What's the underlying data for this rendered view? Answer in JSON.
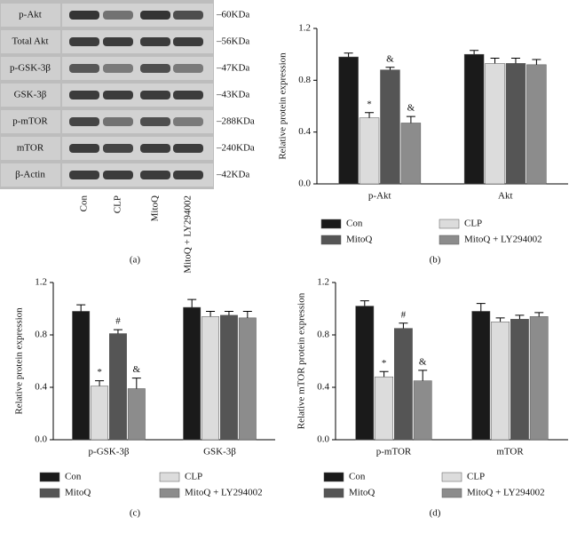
{
  "blot": {
    "rows": [
      "p-Akt",
      "Total Akt",
      "p-GSK-3β",
      "GSK-3β",
      "p-mTOR",
      "mTOR",
      "β-Actin"
    ],
    "sizes": [
      "–60KDa",
      "–56KDa",
      "–47KDa",
      "–43KDa",
      "–288KDa",
      "–240KDa",
      "–42KDa"
    ],
    "lanes": [
      "Con",
      "CLP",
      "MitoQ",
      "MitoQ + LY294002"
    ],
    "caption": "(a)"
  },
  "chart_data": [
    {
      "type": "bar",
      "caption": "(b)",
      "ylabel": "Relative protein expression",
      "categories": [
        "p-Akt",
        "Akt"
      ],
      "ylim": [
        0,
        1.2
      ],
      "yticks": [
        {
          "value": 0,
          "label": "0.0"
        },
        0.4,
        0.8,
        1.2
      ],
      "series": [
        {
          "name": "Con",
          "color": "#1a1a1a",
          "values": [
            0.98,
            1.0
          ],
          "errors": [
            0.03,
            0.03
          ],
          "annotations": [
            null,
            null
          ]
        },
        {
          "name": "CLP",
          "color": "#dcdcdc",
          "values": [
            0.51,
            0.93
          ],
          "errors": [
            0.04,
            0.04
          ],
          "annotations": [
            "*",
            null
          ]
        },
        {
          "name": "MitoQ",
          "color": "#555555",
          "values": [
            0.88,
            0.93
          ],
          "errors": [
            0.02,
            0.04
          ],
          "annotations": [
            "&",
            null
          ]
        },
        {
          "name": "MitoQ + LY294002",
          "color": "#8c8c8c",
          "values": [
            0.47,
            0.92
          ],
          "errors": [
            0.05,
            0.04
          ],
          "annotations": [
            "&",
            null
          ]
        }
      ]
    },
    {
      "type": "bar",
      "caption": "(c)",
      "ylabel": "Relative protein expression",
      "categories": [
        "p-GSK-3β",
        "GSK-3β"
      ],
      "ylim": [
        0,
        1.2
      ],
      "yticks": [
        {
          "value": 0,
          "label": "0.0"
        },
        0.4,
        0.8,
        1.2
      ],
      "series": [
        {
          "name": "Con",
          "color": "#1a1a1a",
          "values": [
            0.98,
            1.01
          ],
          "errors": [
            0.05,
            0.06
          ],
          "annotations": [
            null,
            null
          ]
        },
        {
          "name": "CLP",
          "color": "#dcdcdc",
          "values": [
            0.41,
            0.94
          ],
          "errors": [
            0.04,
            0.04
          ],
          "annotations": [
            "*",
            null
          ]
        },
        {
          "name": "MitoQ",
          "color": "#555555",
          "values": [
            0.81,
            0.95
          ],
          "errors": [
            0.03,
            0.03
          ],
          "annotations": [
            "#",
            null
          ]
        },
        {
          "name": "MitoQ + LY294002",
          "color": "#8c8c8c",
          "values": [
            0.39,
            0.93
          ],
          "errors": [
            0.08,
            0.05
          ],
          "annotations": [
            "&",
            null
          ]
        }
      ]
    },
    {
      "type": "bar",
      "caption": "(d)",
      "ylabel": "Relative mTOR protein expression",
      "categories": [
        "p-mTOR",
        "mTOR"
      ],
      "ylim": [
        0,
        1.2
      ],
      "yticks": [
        {
          "value": 0,
          "label": "0.0"
        },
        0.4,
        0.8,
        1.2
      ],
      "series": [
        {
          "name": "Con",
          "color": "#1a1a1a",
          "values": [
            1.02,
            0.98
          ],
          "errors": [
            0.04,
            0.06
          ],
          "annotations": [
            null,
            null
          ]
        },
        {
          "name": "CLP",
          "color": "#dcdcdc",
          "values": [
            0.48,
            0.9
          ],
          "errors": [
            0.04,
            0.03
          ],
          "annotations": [
            "*",
            null
          ]
        },
        {
          "name": "MitoQ",
          "color": "#555555",
          "values": [
            0.85,
            0.92
          ],
          "errors": [
            0.04,
            0.03
          ],
          "annotations": [
            "#",
            null
          ]
        },
        {
          "name": "MitoQ + LY294002",
          "color": "#8c8c8c",
          "values": [
            0.45,
            0.94
          ],
          "errors": [
            0.08,
            0.03
          ],
          "annotations": [
            "&",
            null
          ]
        }
      ]
    }
  ]
}
